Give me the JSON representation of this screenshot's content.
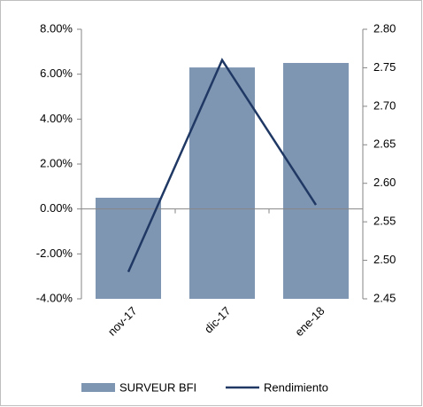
{
  "chart_data": {
    "type": "bar_line",
    "categories": [
      "nov-17",
      "dic-17",
      "ene-18"
    ],
    "series": [
      {
        "name": "SURVEUR BFI",
        "type": "bar",
        "color": "#7f96b2",
        "values": [
          0.5,
          6.3,
          6.5
        ]
      },
      {
        "name": "Rendimiento",
        "type": "line",
        "axis": "y2",
        "color": "#1f3864",
        "values": [
          2.485,
          2.76,
          2.572
        ]
      }
    ],
    "ylim": [
      -4,
      8
    ],
    "yticks": [
      {
        "value": -4,
        "label": "-4.00%"
      },
      {
        "value": -2,
        "label": "-2.00%"
      },
      {
        "value": 0,
        "label": "0.00%"
      },
      {
        "value": 2,
        "label": "2.00%"
      },
      {
        "value": 4,
        "label": "4.00%"
      },
      {
        "value": 6,
        "label": "6.00%"
      },
      {
        "value": 8,
        "label": "8.00%"
      }
    ],
    "y2lim": [
      2.45,
      2.8
    ],
    "y2ticks": [
      2.45,
      {
        "value": 2.5,
        "label": "2.50"
      },
      2.55,
      {
        "value": 2.6,
        "label": "2.60"
      },
      2.65,
      {
        "value": 2.7,
        "label": "2.70"
      },
      2.75,
      {
        "value": 2.8,
        "label": "2.80"
      }
    ],
    "legend": "bottom"
  }
}
